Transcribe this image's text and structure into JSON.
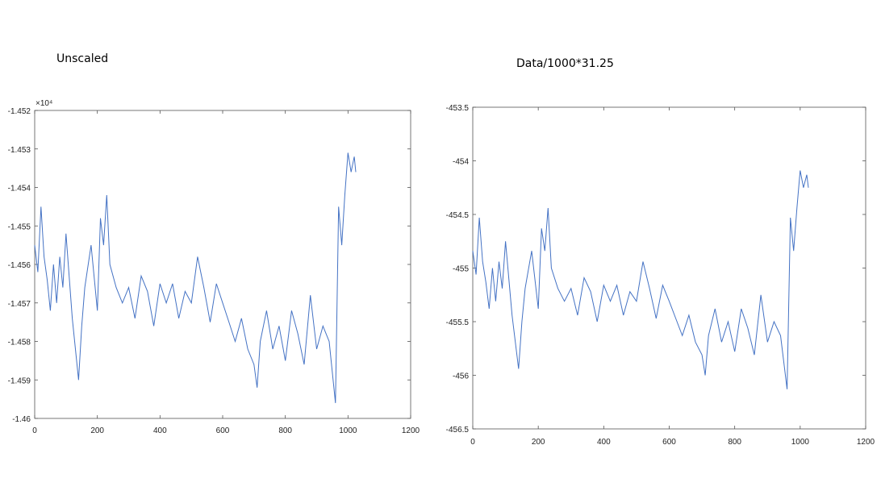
{
  "headings": {
    "left": "Unscaled",
    "right": "Data/1000*31.25"
  },
  "colors": {
    "series": "#4472c4",
    "axis": "#555555"
  },
  "chart_data": [
    {
      "type": "line",
      "title": "",
      "xlabel": "",
      "ylabel": "",
      "xlim": [
        0,
        1200
      ],
      "ylim": [
        -1.46,
        -1.452
      ],
      "x_ticks": [
        0,
        200,
        400,
        600,
        800,
        1000,
        1200
      ],
      "y_ticks": [
        -1.46,
        -1.459,
        -1.458,
        -1.457,
        -1.456,
        -1.455,
        -1.454,
        -1.453,
        -1.452
      ],
      "y_tick_labels": [
        "-1.46",
        "-1.459",
        "-1.458",
        "-1.457",
        "-1.456",
        "-1.455",
        "-1.454",
        "-1.453",
        "-1.452"
      ],
      "exponent_label": "×10⁴",
      "grid": false,
      "series": [
        {
          "x": [
            0,
            10,
            20,
            30,
            40,
            50,
            60,
            70,
            80,
            90,
            100,
            120,
            140,
            150,
            160,
            180,
            200,
            210,
            220,
            230,
            240,
            260,
            280,
            300,
            320,
            340,
            360,
            380,
            400,
            420,
            440,
            460,
            480,
            500,
            520,
            540,
            560,
            580,
            600,
            620,
            640,
            660,
            680,
            700,
            710,
            720,
            740,
            760,
            780,
            800,
            820,
            840,
            860,
            880,
            900,
            920,
            940,
            960,
            970,
            980,
            990,
            1000,
            1010,
            1020,
            1025
          ],
          "y": [
            -1.4555,
            -1.4562,
            -1.4545,
            -1.4558,
            -1.4564,
            -1.4572,
            -1.456,
            -1.457,
            -1.4558,
            -1.4566,
            -1.4552,
            -1.4574,
            -1.459,
            -1.4576,
            -1.4566,
            -1.4555,
            -1.4572,
            -1.4548,
            -1.4555,
            -1.4542,
            -1.456,
            -1.4566,
            -1.457,
            -1.4566,
            -1.4574,
            -1.4563,
            -1.4567,
            -1.4576,
            -1.4565,
            -1.457,
            -1.4565,
            -1.4574,
            -1.4567,
            -1.457,
            -1.4558,
            -1.4566,
            -1.4575,
            -1.4565,
            -1.457,
            -1.4575,
            -1.458,
            -1.4574,
            -1.4582,
            -1.4586,
            -1.4592,
            -1.458,
            -1.4572,
            -1.4582,
            -1.4576,
            -1.4585,
            -1.4572,
            -1.4578,
            -1.4586,
            -1.4568,
            -1.4582,
            -1.4576,
            -1.458,
            -1.4596,
            -1.4545,
            -1.4555,
            -1.4542,
            -1.4531,
            -1.4536,
            -1.4532,
            -1.4536
          ]
        }
      ]
    },
    {
      "type": "line",
      "title": "",
      "xlabel": "",
      "ylabel": "",
      "xlim": [
        0,
        1200
      ],
      "ylim": [
        -456.5,
        -453.5
      ],
      "x_ticks": [
        0,
        200,
        400,
        600,
        800,
        1000,
        1200
      ],
      "y_ticks": [
        -456.5,
        -456,
        -455.5,
        -455,
        -454.5,
        -454,
        -453.5
      ],
      "y_tick_labels": [
        "-456.5",
        "-456",
        "-455.5",
        "-455",
        "-454.5",
        "-454",
        "-453.5"
      ],
      "grid": false,
      "series": [
        {
          "x": [
            0,
            10,
            20,
            30,
            40,
            50,
            60,
            70,
            80,
            90,
            100,
            120,
            140,
            150,
            160,
            180,
            200,
            210,
            220,
            230,
            240,
            260,
            280,
            300,
            320,
            340,
            360,
            380,
            400,
            420,
            440,
            460,
            480,
            500,
            520,
            540,
            560,
            580,
            600,
            620,
            640,
            660,
            680,
            700,
            710,
            720,
            740,
            760,
            780,
            800,
            820,
            840,
            860,
            880,
            900,
            920,
            940,
            960,
            970,
            980,
            990,
            1000,
            1010,
            1020,
            1025
          ],
          "y": [
            -454.84,
            -455.06,
            -454.53,
            -454.94,
            -455.13,
            -455.38,
            -455.0,
            -455.31,
            -454.94,
            -455.19,
            -454.75,
            -455.44,
            -455.94,
            -455.5,
            -455.19,
            -454.84,
            -455.38,
            -454.63,
            -454.84,
            -454.44,
            -455.0,
            -455.19,
            -455.31,
            -455.19,
            -455.44,
            -455.09,
            -455.22,
            -455.5,
            -455.16,
            -455.31,
            -455.16,
            -455.44,
            -455.22,
            -455.31,
            -454.94,
            -455.19,
            -455.47,
            -455.16,
            -455.31,
            -455.47,
            -455.63,
            -455.44,
            -455.69,
            -455.81,
            -456.0,
            -455.63,
            -455.38,
            -455.69,
            -455.5,
            -455.78,
            -455.38,
            -455.56,
            -455.81,
            -455.25,
            -455.69,
            -455.5,
            -455.63,
            -456.13,
            -454.53,
            -454.84,
            -454.44,
            -454.09,
            -454.25,
            -454.13,
            -454.25
          ]
        }
      ]
    }
  ]
}
